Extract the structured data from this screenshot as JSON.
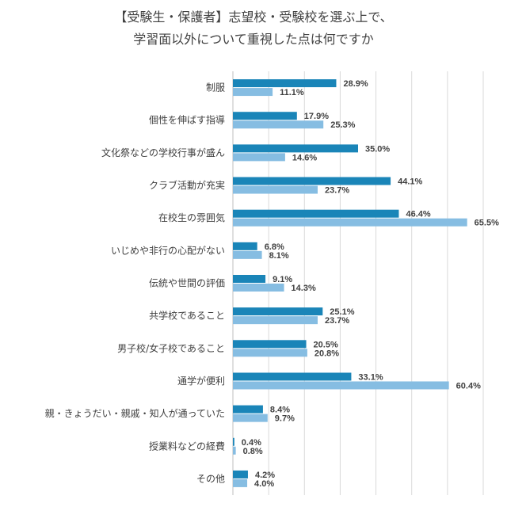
{
  "chart_data": {
    "type": "bar",
    "orientation": "horizontal",
    "title_lines": [
      "【受験生・保護者】志望校・受験校を選ぶ上で、",
      "学習面以外について重視した点は何ですか"
    ],
    "categories": [
      "制服",
      "個性を伸ばす指導",
      "文化祭などの学校行事が盛ん",
      "クラブ活動が充実",
      "在校生の雰囲気",
      "いじめや非行の心配がない",
      "伝統や世間の評価",
      "共学校であること",
      "男子校/女子校であること",
      "通学が便利",
      "親・きょうだい・親戚・知人が通っていた",
      "授業料などの経費",
      "その他"
    ],
    "series": [
      {
        "color": "#1a85b8",
        "values": [
          28.9,
          17.9,
          35.0,
          44.1,
          46.4,
          6.8,
          9.1,
          25.1,
          20.5,
          33.1,
          8.4,
          0.4,
          4.2
        ],
        "labels": [
          "28.9%",
          "17.9%",
          "35.0%",
          "44.1%",
          "46.4%",
          "6.8%",
          "9.1%",
          "25.1%",
          "20.5%",
          "33.1%",
          "8.4%",
          "0.4%",
          "4.2%"
        ]
      },
      {
        "color": "#86bde2",
        "values": [
          11.1,
          25.3,
          14.6,
          23.7,
          65.5,
          8.1,
          14.3,
          23.7,
          20.8,
          60.4,
          9.7,
          0.8,
          4.0
        ],
        "labels": [
          "11.1%",
          "25.3%",
          "14.6%",
          "23.7%",
          "65.5%",
          "8.1%",
          "14.3%",
          "23.7%",
          "20.8%",
          "60.4%",
          "9.7%",
          "0.8%",
          "4.0%"
        ]
      }
    ],
    "xlim": [
      0,
      70
    ],
    "grid": true,
    "gridline_step": 10
  }
}
